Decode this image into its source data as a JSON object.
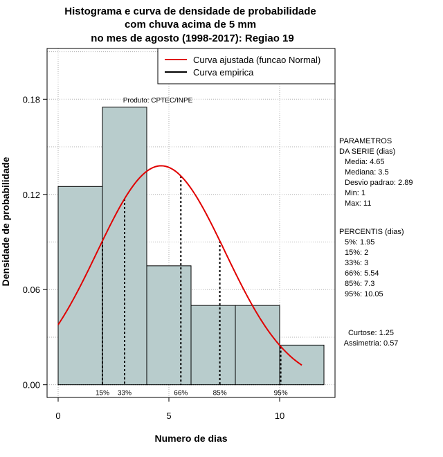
{
  "chart_data": {
    "type": "bar",
    "title_lines": [
      "Histograma e curva de densidade de probabilidade",
      "com chuva acima de 5 mm",
      "no mes de agosto (1998-2017): Regiao 19"
    ],
    "xlabel": "Numero de dias",
    "ylabel": "Densidade de probabilidade",
    "xlim": [
      -0.5,
      12.5
    ],
    "ylim": [
      -0.008,
      0.212
    ],
    "x_ticks": [
      0,
      5,
      10
    ],
    "y_ticks": [
      0.0,
      0.06,
      0.12,
      0.18
    ],
    "y_tick_labels": [
      "0.00",
      "0.06",
      "0.12",
      "0.18"
    ],
    "grid": true,
    "bar_color": "#b8cccc",
    "curve_color": "#e00000",
    "bins": [
      {
        "start": 0,
        "end": 2,
        "density": 0.125
      },
      {
        "start": 2,
        "end": 4,
        "density": 0.175
      },
      {
        "start": 4,
        "end": 6,
        "density": 0.075
      },
      {
        "start": 6,
        "end": 8,
        "density": 0.05
      },
      {
        "start": 8,
        "end": 10,
        "density": 0.05
      },
      {
        "start": 10,
        "end": 12,
        "density": 0.025
      }
    ],
    "normal_fit": {
      "mean": 4.65,
      "sd": 2.89,
      "x_from": 0,
      "x_to": 11
    },
    "percentile_lines": [
      {
        "label": "15%",
        "x": 2
      },
      {
        "label": "33%",
        "x": 3
      },
      {
        "label": "66%",
        "x": 5.54
      },
      {
        "label": "85%",
        "x": 7.3
      },
      {
        "label": "95%",
        "x": 10.05
      }
    ],
    "legend": {
      "position": "top-right",
      "entries": [
        {
          "label": "Curva ajustada (funcao Normal)",
          "color": "#e00000"
        },
        {
          "label": "Curva empirica",
          "color": "#000000"
        }
      ]
    },
    "annotation": "Produto: CPTEC/INPE"
  },
  "side_panel": {
    "parametros_lines": [
      "PARAMETROS",
      "DA SERIE (dias)",
      "Media: 4.65",
      "Mediana: 3.5",
      "Desvio padrao: 2.89",
      "Min: 1",
      "Max: 11"
    ],
    "percentis_lines": [
      "PERCENTIS (dias)",
      "5%: 1.95",
      "15%: 2",
      "33%: 3",
      "66%: 5.54",
      "85%: 7.3",
      "95%: 10.05"
    ],
    "shape_lines": [
      "Curtose: 1.25",
      "Assimetria: 0.57"
    ]
  }
}
